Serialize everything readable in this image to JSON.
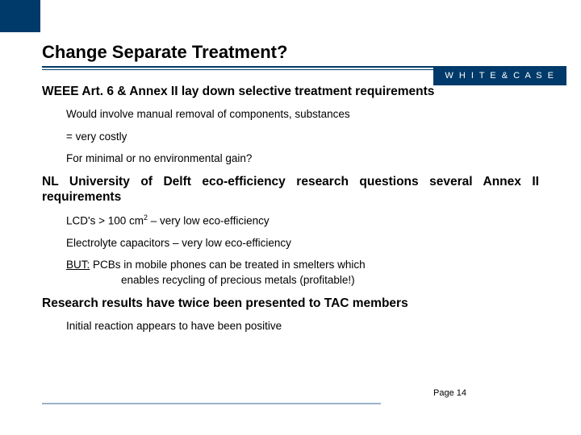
{
  "brand": {
    "logo_text": "W H I T E  &  C A S E"
  },
  "title": "Change Separate Treatment?",
  "sections": [
    {
      "heading": "WEEE Art. 6 & Annex II lay down selective treatment requirements",
      "bullets": [
        "Would involve manual removal of components, substances",
        "= very costly",
        "For minimal or no environmental gain?"
      ]
    },
    {
      "heading": "NL University of Delft eco-efficiency research questions several Annex II requirements",
      "bullets": [
        "LCD's > 100 cm² – very low eco-efficiency",
        "Electrolyte capacitors – very low eco-efficiency"
      ],
      "but": {
        "label": "BUT:",
        "line1": " PCBs in mobile phones can be treated in smelters which",
        "line2": "enables recycling of precious metals (profitable!)"
      }
    },
    {
      "heading": "Research results have twice been presented to TAC members",
      "bullets": [
        "Initial reaction appears to have been positive"
      ]
    }
  ],
  "lcd_parts": {
    "pre": "LCD's > 100 cm",
    "sup": "2",
    "post": " – very low eco-efficiency"
  },
  "page": {
    "label": "Page 14"
  },
  "colors": {
    "brand_blue": "#003a6a",
    "light_rule": "#99b3c9",
    "text": "#000000",
    "bg": "#ffffff"
  }
}
